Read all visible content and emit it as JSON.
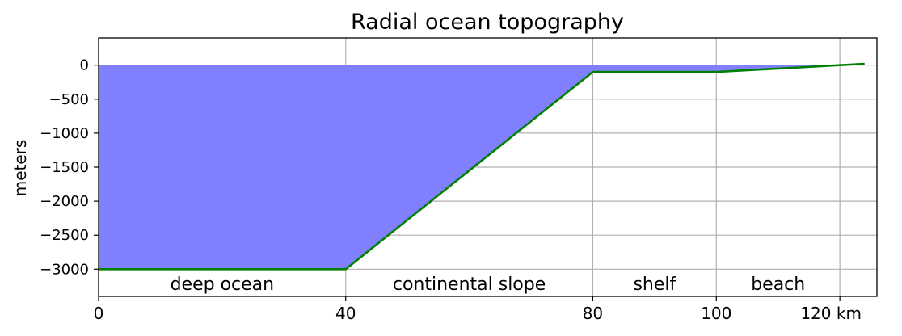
{
  "chart_data": {
    "type": "area",
    "title": "Radial ocean topography",
    "xlabel": "",
    "ylabel": "meters",
    "xlim": [
      0,
      126
    ],
    "ylim": [
      -3400,
      400
    ],
    "grid": true,
    "x_ticks": [
      0,
      40,
      80,
      100,
      120
    ],
    "x_tick_labels": [
      "0",
      "40",
      "80",
      "100",
      "120 km"
    ],
    "y_ticks": [
      0,
      -500,
      -1000,
      -1500,
      -2000,
      -2500,
      -3000
    ],
    "y_tick_labels": [
      "0",
      "−500",
      "−1000",
      "−1500",
      "−2000",
      "−2500",
      "−3000"
    ],
    "colors": {
      "water_fill": "#8080ff",
      "topography_line": "#008000",
      "grid": "#b0b0b0"
    },
    "series": [
      {
        "x": [
          0,
          40,
          80,
          100,
          124
        ],
        "y": [
          -3000,
          -3000,
          -100,
          -100,
          20
        ]
      }
    ],
    "regions": [
      {
        "label": "deep ocean",
        "x": 20
      },
      {
        "label": "continental slope",
        "x": 60
      },
      {
        "label": "shelf",
        "x": 90
      },
      {
        "label": "beach",
        "x": 110
      }
    ]
  }
}
